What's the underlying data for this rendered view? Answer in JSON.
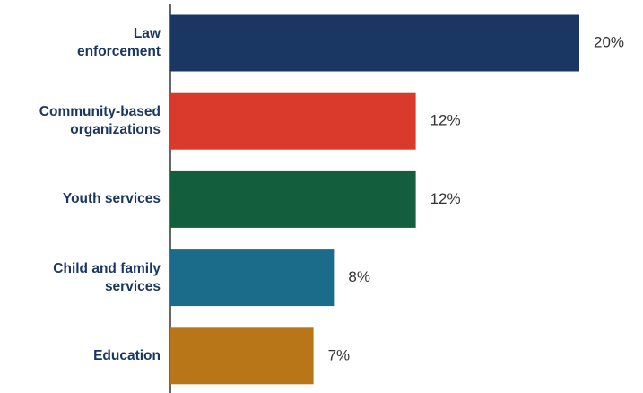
{
  "chart_data": {
    "type": "bar",
    "orientation": "horizontal",
    "categories": [
      "Law enforcement",
      "Community-based organizations",
      "Youth services",
      "Child and family services",
      "Education"
    ],
    "values": [
      20,
      12,
      12,
      8,
      7
    ],
    "value_labels": [
      "20%",
      "12%",
      "12%",
      "8%",
      "7%"
    ],
    "colors": [
      "#1a3764",
      "#d93a2b",
      "#125e3d",
      "#1b6b8a",
      "#b97619"
    ]
  }
}
